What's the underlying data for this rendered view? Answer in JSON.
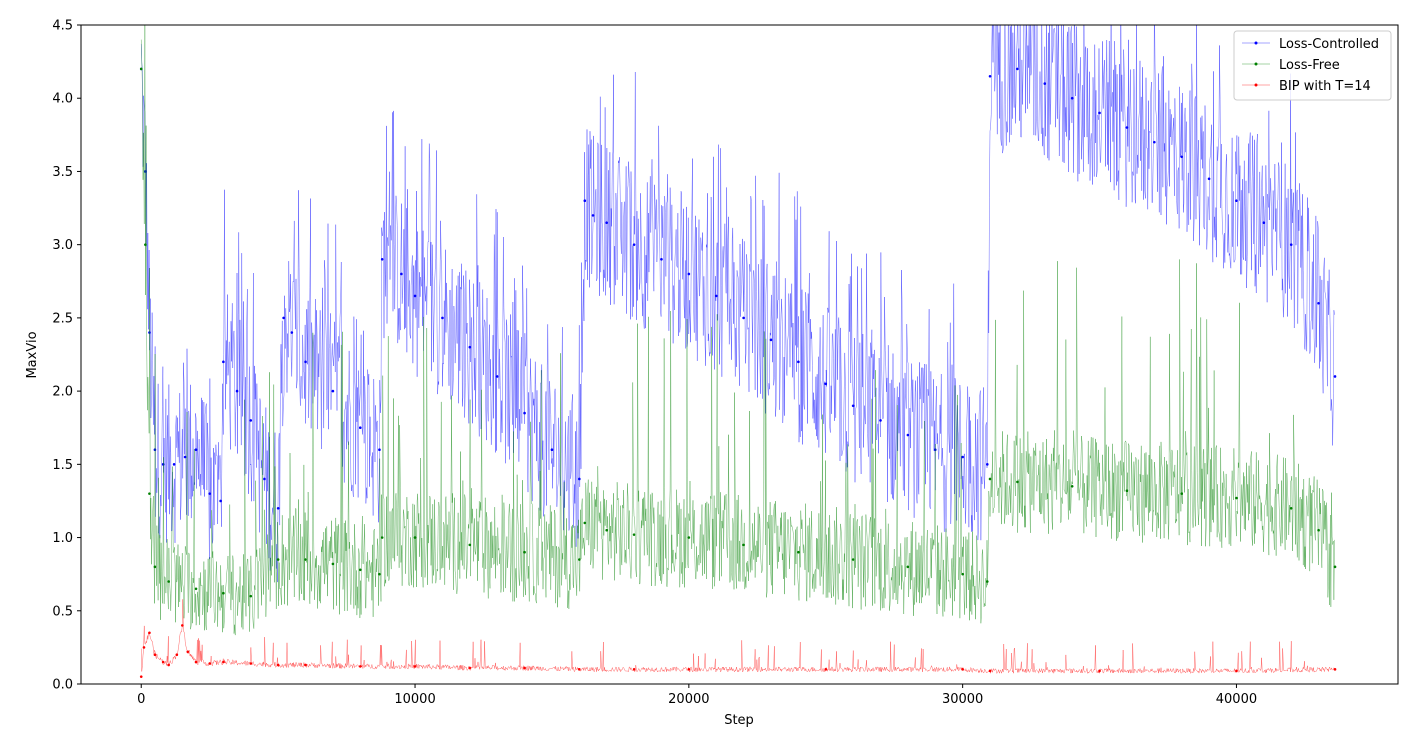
{
  "chart_data": {
    "type": "line",
    "xlabel": "Step",
    "ylabel": "MaxVio",
    "xlim": [
      -2200,
      45900
    ],
    "ylim": [
      0,
      4.5
    ],
    "xticks": [
      0,
      10000,
      20000,
      30000,
      40000
    ],
    "xtick_labels": [
      "0",
      "10000",
      "20000",
      "30000",
      "40000"
    ],
    "yticks": [
      0.0,
      0.5,
      1.0,
      1.5,
      2.0,
      2.5,
      3.0,
      3.5,
      4.0,
      4.5
    ],
    "ytick_labels": [
      "0.0",
      "0.5",
      "1.0",
      "1.5",
      "2.0",
      "2.5",
      "3.0",
      "3.5",
      "4.0",
      "4.5"
    ],
    "grid": false,
    "legend_position": "top-right",
    "series": [
      {
        "name": "Loss-Controlled",
        "color": "#0000ff",
        "x": [
          0,
          150,
          300,
          500,
          800,
          1200,
          1600,
          2000,
          2500,
          2900,
          3000,
          3500,
          4000,
          4500,
          5000,
          5200,
          5500,
          6000,
          7000,
          8000,
          8700,
          8800,
          9500,
          10000,
          11000,
          12000,
          13000,
          14000,
          15000,
          16000,
          16200,
          16500,
          17000,
          18000,
          19000,
          20000,
          21000,
          22000,
          23000,
          24000,
          25000,
          26000,
          27000,
          28000,
          29000,
          30000,
          30900,
          31000,
          32000,
          33000,
          34000,
          35000,
          36000,
          37000,
          38000,
          39000,
          40000,
          41000,
          42000,
          43000,
          43600
        ],
        "values": [
          4.2,
          3.5,
          2.4,
          1.6,
          1.5,
          1.5,
          1.55,
          1.6,
          1.3,
          1.25,
          2.2,
          2.0,
          1.8,
          1.4,
          1.2,
          2.5,
          2.4,
          2.2,
          2.0,
          1.75,
          1.6,
          2.9,
          2.8,
          2.65,
          2.5,
          2.3,
          2.1,
          1.85,
          1.6,
          1.4,
          3.3,
          3.2,
          3.15,
          3.0,
          2.9,
          2.8,
          2.65,
          2.5,
          2.35,
          2.2,
          2.05,
          1.9,
          1.8,
          1.7,
          1.6,
          1.55,
          1.5,
          4.15,
          4.2,
          4.1,
          4.0,
          3.9,
          3.8,
          3.7,
          3.6,
          3.45,
          3.3,
          3.15,
          3.0,
          2.6,
          2.1
        ]
      },
      {
        "name": "Loss-Free",
        "color": "#008000",
        "x": [
          0,
          150,
          300,
          500,
          1000,
          2000,
          3000,
          4000,
          5000,
          6000,
          7000,
          8000,
          8700,
          8800,
          10000,
          12000,
          14000,
          16000,
          16200,
          17000,
          18000,
          20000,
          22000,
          24000,
          26000,
          28000,
          30000,
          30900,
          31000,
          32000,
          34000,
          36000,
          38000,
          40000,
          42000,
          43000,
          43600
        ],
        "values": [
          4.2,
          3.0,
          1.3,
          0.8,
          0.7,
          0.65,
          0.62,
          0.6,
          0.85,
          0.85,
          0.82,
          0.78,
          0.75,
          1.0,
          1.0,
          0.95,
          0.9,
          0.85,
          1.1,
          1.05,
          1.02,
          1.0,
          0.95,
          0.9,
          0.85,
          0.8,
          0.75,
          0.7,
          1.4,
          1.38,
          1.35,
          1.32,
          1.3,
          1.27,
          1.2,
          1.05,
          0.8
        ]
      },
      {
        "name": "BIP with T=14",
        "color": "#ff0000",
        "x": [
          0,
          100,
          300,
          500,
          800,
          1000,
          1300,
          1500,
          1700,
          2000,
          2500,
          3000,
          4000,
          5000,
          6000,
          8000,
          10000,
          12000,
          14000,
          16000,
          18000,
          20000,
          25000,
          30000,
          31000,
          35000,
          40000,
          43600
        ],
        "values": [
          0.05,
          0.25,
          0.35,
          0.2,
          0.15,
          0.13,
          0.2,
          0.4,
          0.22,
          0.15,
          0.14,
          0.15,
          0.14,
          0.13,
          0.13,
          0.12,
          0.12,
          0.11,
          0.11,
          0.1,
          0.1,
          0.1,
          0.1,
          0.1,
          0.09,
          0.09,
          0.09,
          0.1
        ]
      }
    ]
  }
}
